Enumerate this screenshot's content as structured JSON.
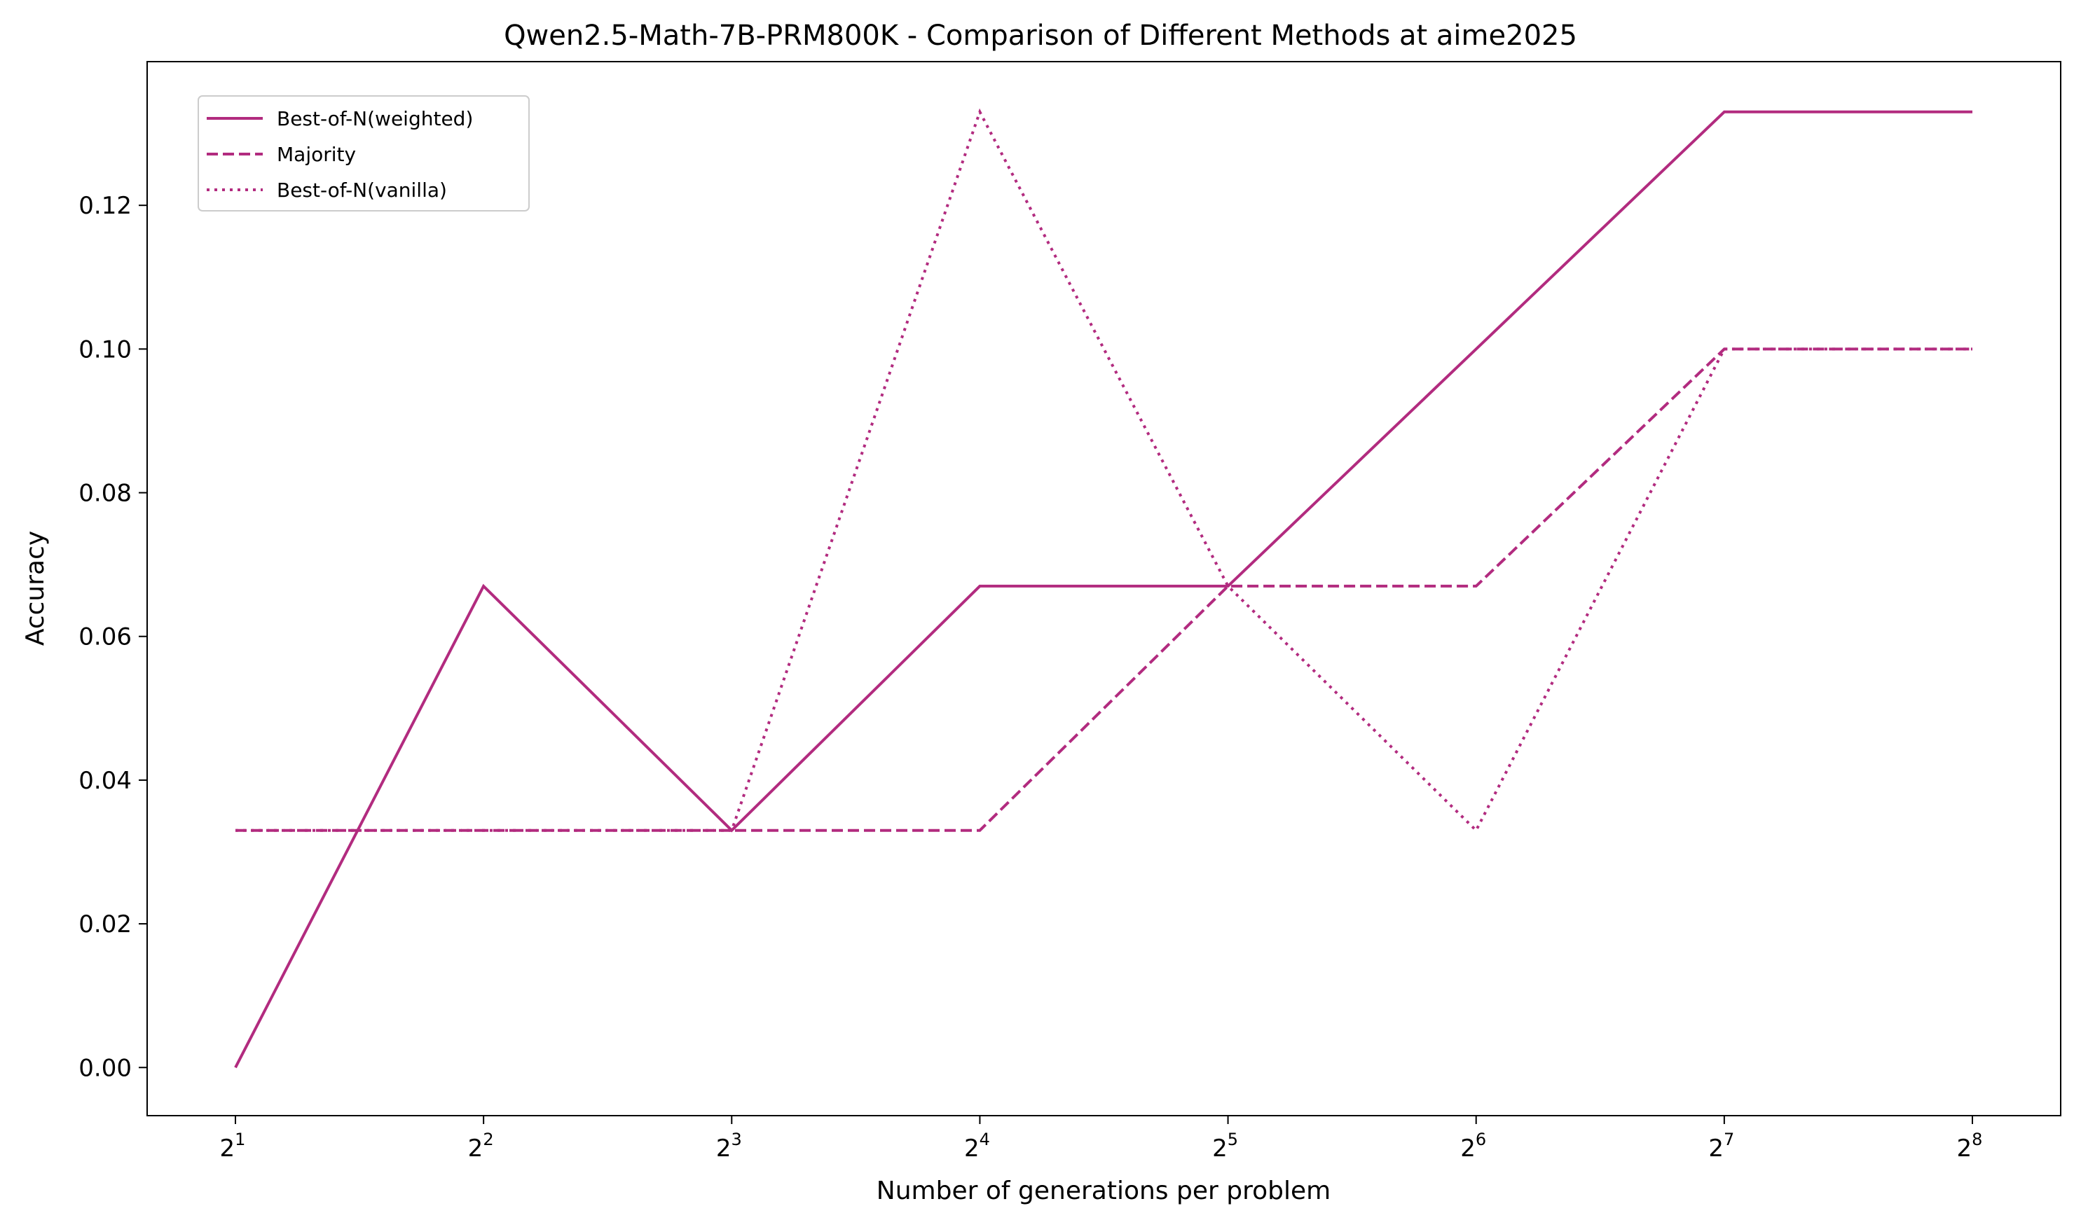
{
  "chart_data": {
    "type": "line",
    "title": "Qwen2.5-Math-7B-PRM800K - Comparison of Different Methods at aime2025",
    "xlabel": "Number of generations per problem",
    "ylabel": "Accuracy",
    "x_scale": "log2",
    "x": [
      2,
      4,
      8,
      16,
      32,
      64,
      128,
      256
    ],
    "x_tick_labels": [
      {
        "base": "2",
        "exp": "1"
      },
      {
        "base": "2",
        "exp": "2"
      },
      {
        "base": "2",
        "exp": "3"
      },
      {
        "base": "2",
        "exp": "4"
      },
      {
        "base": "2",
        "exp": "5"
      },
      {
        "base": "2",
        "exp": "6"
      },
      {
        "base": "2",
        "exp": "7"
      },
      {
        "base": "2",
        "exp": "8"
      }
    ],
    "y_ticks": [
      0.0,
      0.02,
      0.04,
      0.06,
      0.08,
      0.1,
      0.12
    ],
    "y_tick_labels": [
      "0.00",
      "0.02",
      "0.04",
      "0.06",
      "0.08",
      "0.10",
      "0.12"
    ],
    "ylim": [
      -0.0067,
      0.14
    ],
    "grid": false,
    "legend_position": "upper-left",
    "color": "#b22b7f",
    "series": [
      {
        "name": "Best-of-N(weighted)",
        "style": "solid",
        "values": [
          0.0,
          0.067,
          0.033,
          0.067,
          0.067,
          0.1,
          0.133,
          0.133
        ]
      },
      {
        "name": "Majority",
        "style": "dashed",
        "values": [
          0.033,
          0.033,
          0.033,
          0.033,
          0.067,
          0.067,
          0.1,
          0.1
        ]
      },
      {
        "name": "Best-of-N(vanilla)",
        "style": "dotted",
        "values": [
          0.033,
          0.033,
          0.033,
          0.133,
          0.067,
          0.033,
          0.1,
          0.1
        ]
      }
    ]
  }
}
